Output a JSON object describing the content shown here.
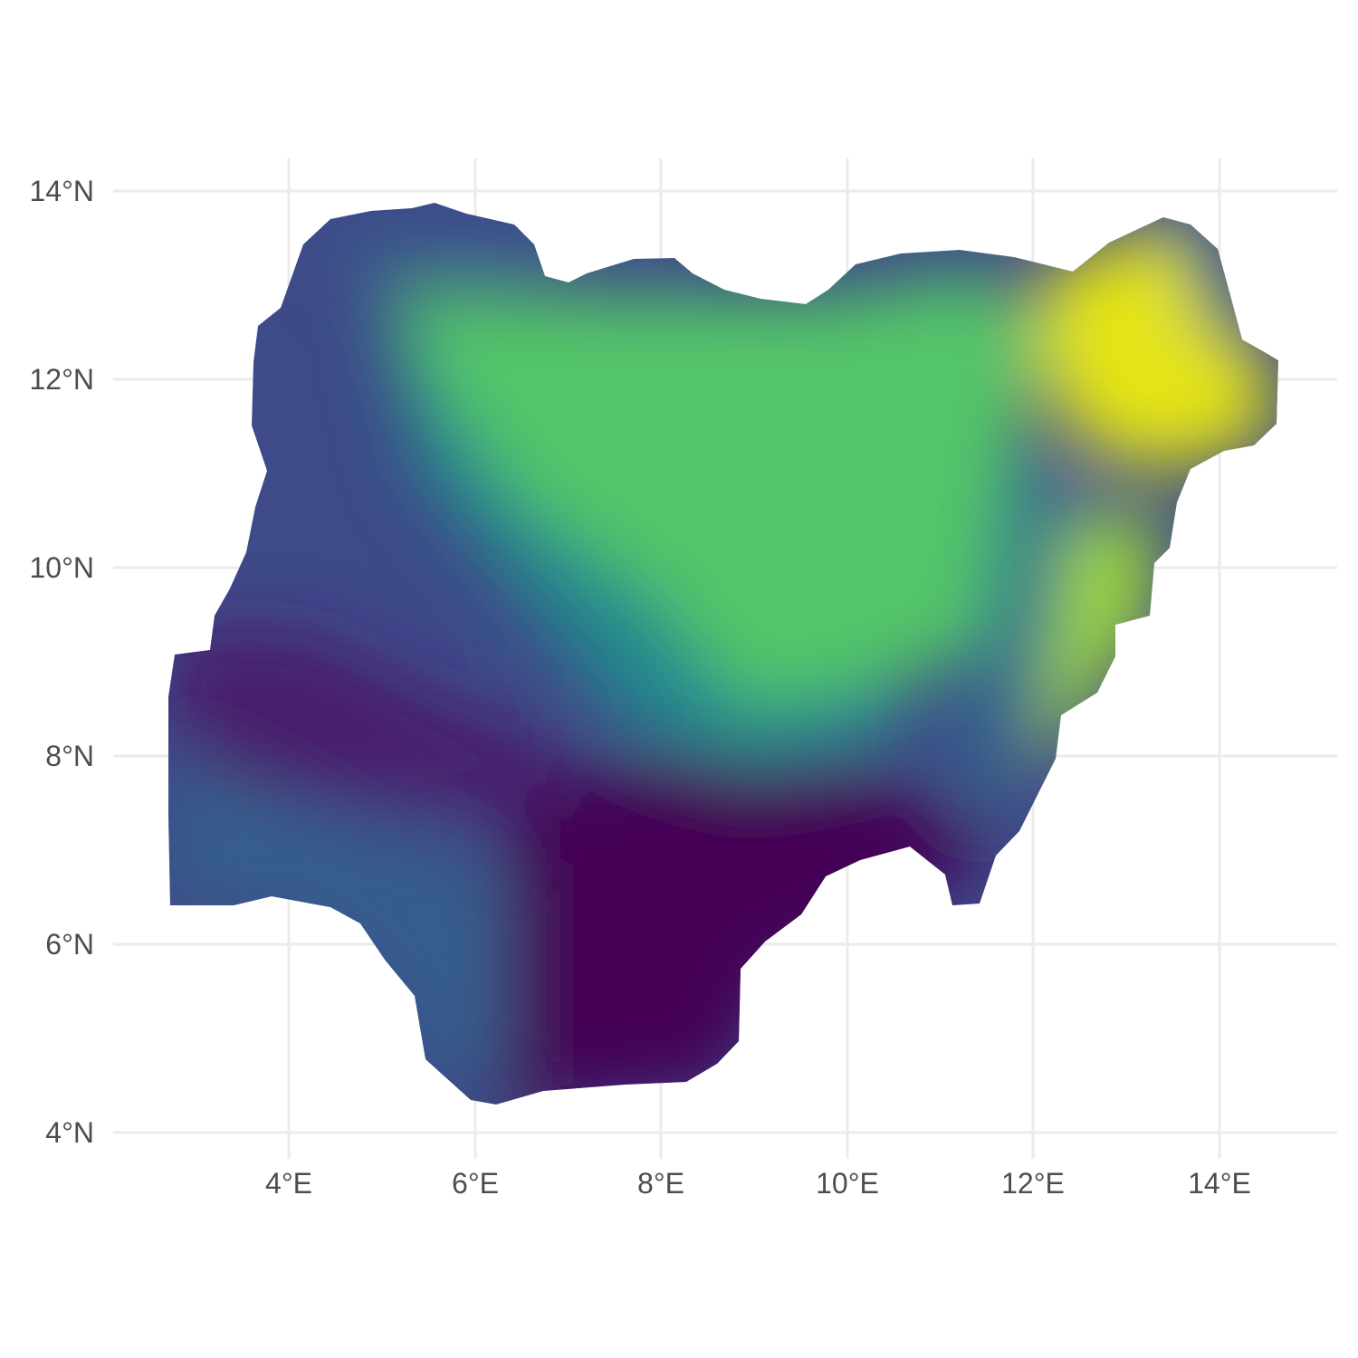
{
  "map": {
    "region": "Nigeria",
    "color_scale": "viridis",
    "colors": {
      "low": "#440154",
      "mid_low": "#3b528b",
      "mid": "#21918c",
      "mid_high": "#5ec962",
      "high": "#fde725"
    },
    "grid": true,
    "legend": "none",
    "x_axis": {
      "range": [
        2.2,
        15.3
      ],
      "ticks": [
        4,
        6,
        8,
        10,
        12,
        14
      ],
      "tick_labels": [
        "4°E",
        "6°E",
        "8°E",
        "10°E",
        "12°E",
        "14°E"
      ]
    },
    "y_axis": {
      "range": [
        3.75,
        14.35
      ],
      "ticks": [
        4,
        6,
        8,
        10,
        12,
        14
      ],
      "tick_labels": [
        "4°N",
        "6°N",
        "8°N",
        "10°N",
        "12°N",
        "14°N"
      ]
    }
  }
}
